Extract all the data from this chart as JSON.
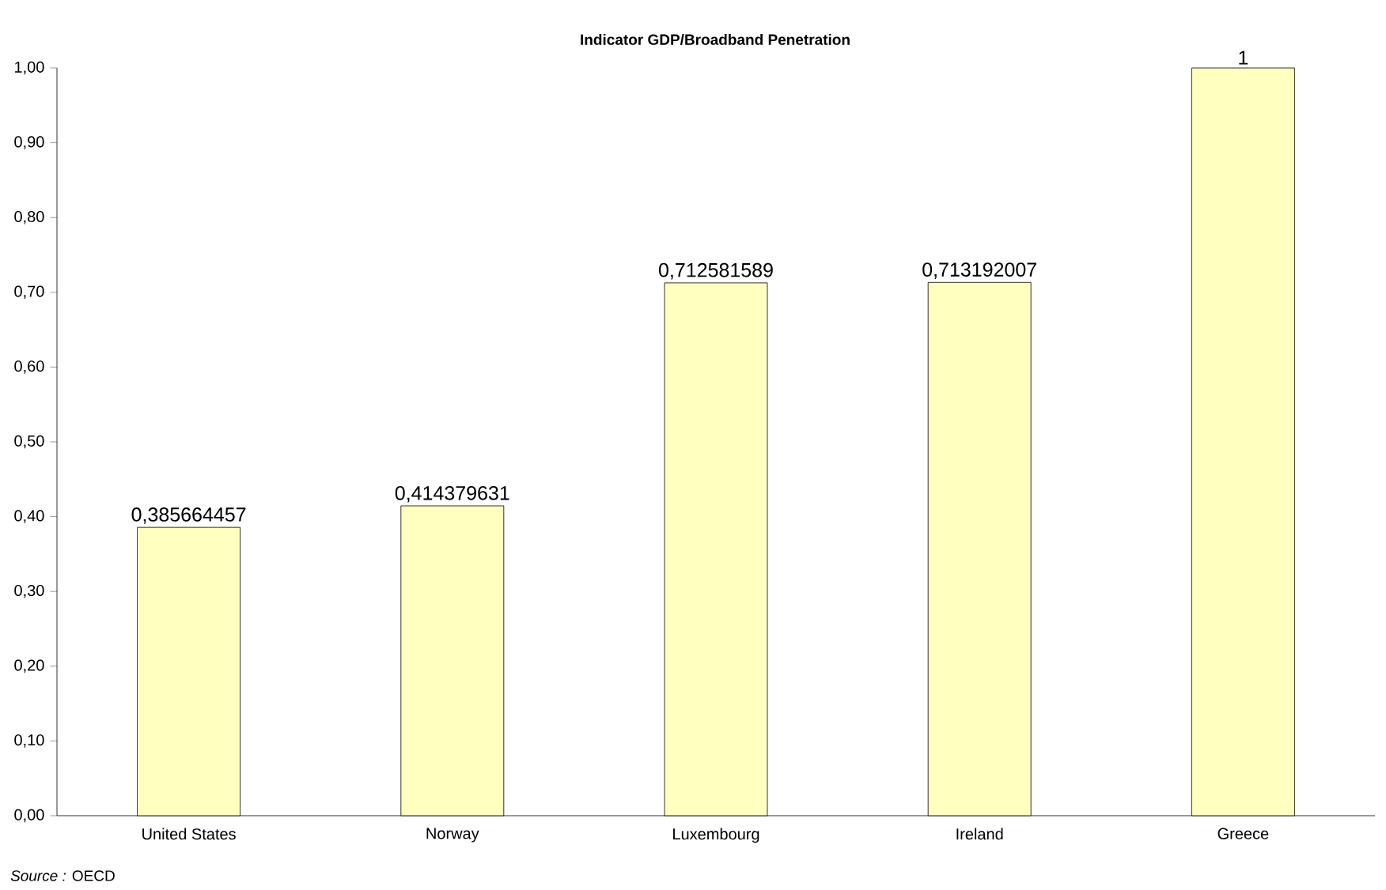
{
  "chart_data": {
    "type": "bar",
    "title": "Indicator GDP/Broadband Penetration",
    "categories": [
      "United States",
      "Norway",
      "Luxembourg",
      "Ireland",
      "Greece"
    ],
    "values": [
      0.385664457,
      0.414379631,
      0.712581589,
      0.713192007,
      1
    ],
    "value_labels": [
      "0,385664457",
      "0,414379631",
      "0,712581589",
      "0,713192007",
      "1"
    ],
    "color": "#ffffc0",
    "ylim": [
      0,
      1
    ],
    "yticks": [
      {
        "value": 0,
        "label": "0,00"
      },
      {
        "value": 0.1,
        "label": "0,10"
      },
      {
        "value": 0.2,
        "label": "0,20"
      },
      {
        "value": 0.3,
        "label": "0,30"
      },
      {
        "value": 0.4,
        "label": "0,40"
      },
      {
        "value": 0.5,
        "label": "0,50"
      },
      {
        "value": 0.6,
        "label": "0,60"
      },
      {
        "value": 0.7,
        "label": "0,70"
      },
      {
        "value": 0.8,
        "label": "0,80"
      },
      {
        "value": 0.9,
        "label": "0,90"
      },
      {
        "value": 1,
        "label": "1,00"
      }
    ],
    "annotations": [
      "*Source :* OECD"
    ],
    "grid": false
  }
}
